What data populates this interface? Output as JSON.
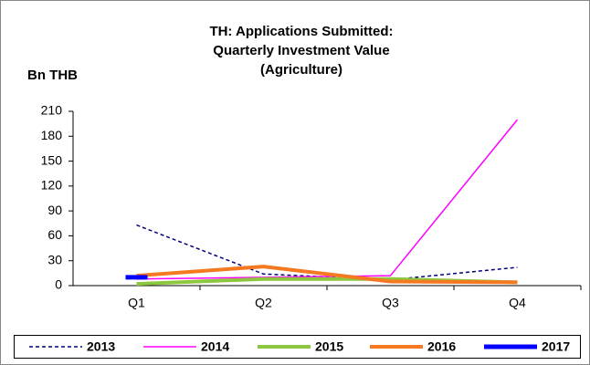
{
  "chart_data": {
    "type": "line",
    "title": [
      "TH: Applications Submitted:",
      "Quarterly Investment Value",
      "(Agriculture)"
    ],
    "y_label": "Bn THB",
    "categories": [
      "Q1",
      "Q2",
      "Q3",
      "Q4"
    ],
    "ylim": [
      0,
      210
    ],
    "yticks": [
      0,
      30,
      60,
      90,
      120,
      150,
      180,
      210
    ],
    "grid": false,
    "legend": "bottom",
    "series": [
      {
        "name": "2013",
        "color": "#000080",
        "dashed": true,
        "width": 1.5,
        "values": [
          73,
          14,
          7,
          22
        ]
      },
      {
        "name": "2014",
        "color": "#ff00ff",
        "dashed": false,
        "width": 1.5,
        "values": [
          8,
          10,
          12,
          200
        ]
      },
      {
        "name": "2015",
        "color": "#8dc63f",
        "dashed": false,
        "width": 4,
        "values": [
          2,
          8,
          8,
          4
        ]
      },
      {
        "name": "2016",
        "color": "#f47920",
        "dashed": false,
        "width": 4,
        "values": [
          12,
          23,
          5,
          4
        ]
      },
      {
        "name": "2017",
        "color": "#0000ff",
        "dashed": false,
        "width": 5,
        "values": [
          10,
          null,
          null,
          null
        ]
      }
    ]
  }
}
